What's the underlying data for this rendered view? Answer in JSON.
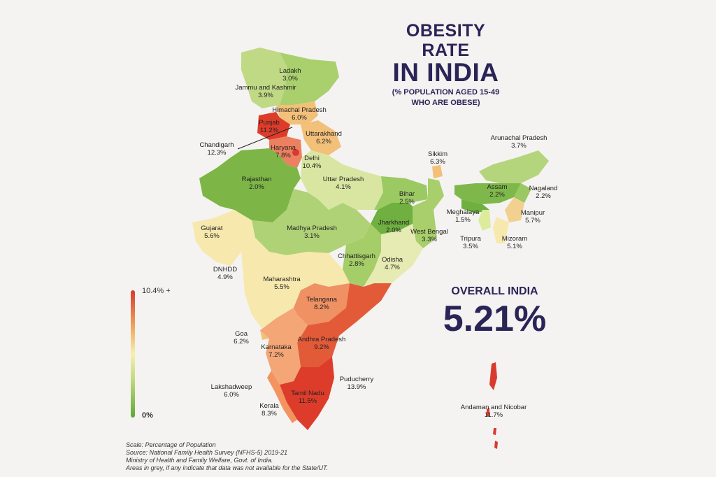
{
  "title": {
    "line1": "OBESITY RATE",
    "line2": "IN INDIA",
    "sub1": "(% POPULATION AGED 15-49",
    "sub2": "WHO ARE OBESE)"
  },
  "overall": {
    "label": "OVERALL INDIA",
    "value": "5.21%"
  },
  "legend": {
    "max_label": "10.4% +",
    "min_label": "0%"
  },
  "colors": {
    "high": "#d93a2e",
    "mid_high": "#f2a35a",
    "mid": "#f7f0b0",
    "mid_low": "#bcd77a",
    "low": "#5fa833",
    "title": "#2b2457"
  },
  "regions": [
    {
      "name": "Ladakh",
      "value": "3.0%"
    },
    {
      "name": "Jammu and Kashmir",
      "value": "3.9%"
    },
    {
      "name": "Himachal Pradesh",
      "value": "6.0%"
    },
    {
      "name": "Punjab",
      "value": "11.2%"
    },
    {
      "name": "Chandigarh",
      "value": "12.3%"
    },
    {
      "name": "Uttarakhand",
      "value": "6.2%"
    },
    {
      "name": "Haryana",
      "value": "7.8%"
    },
    {
      "name": "Delhi",
      "value": "10.4%"
    },
    {
      "name": "Rajasthan",
      "value": "2.0%"
    },
    {
      "name": "Uttar Pradesh",
      "value": "4.1%"
    },
    {
      "name": "Sikkim",
      "value": "6.3%"
    },
    {
      "name": "Arunachal Pradesh",
      "value": "3.7%"
    },
    {
      "name": "Bihar",
      "value": "2.5%"
    },
    {
      "name": "Assam",
      "value": "2.2%"
    },
    {
      "name": "Nagaland",
      "value": "2.2%"
    },
    {
      "name": "Meghalaya",
      "value": "1.5%"
    },
    {
      "name": "Manipur",
      "value": "5.7%"
    },
    {
      "name": "Gujarat",
      "value": "5.6%"
    },
    {
      "name": "Madhya Pradesh",
      "value": "3.1%"
    },
    {
      "name": "Jharkhand",
      "value": "2.0%"
    },
    {
      "name": "West Bengal",
      "value": "3.3%"
    },
    {
      "name": "Tripura",
      "value": "3.5%"
    },
    {
      "name": "Mizoram",
      "value": "5.1%"
    },
    {
      "name": "DNHDD",
      "value": "4.9%"
    },
    {
      "name": "Chhattisgarh",
      "value": "2.8%"
    },
    {
      "name": "Odisha",
      "value": "4.7%"
    },
    {
      "name": "Maharashtra",
      "value": "5.5%"
    },
    {
      "name": "Telangana",
      "value": "8.2%"
    },
    {
      "name": "Goa",
      "value": "6.2%"
    },
    {
      "name": "Andhra Pradesh",
      "value": "9.2%"
    },
    {
      "name": "Karnataka",
      "value": "7.2%"
    },
    {
      "name": "Puducherry",
      "value": "13.9%"
    },
    {
      "name": "Lakshadweep",
      "value": "6.0%"
    },
    {
      "name": "Tamil Nadu",
      "value": "11.5%"
    },
    {
      "name": "Kerala",
      "value": "8.3%"
    },
    {
      "name": "Andaman and Nicobar",
      "value": "11.7%"
    }
  ],
  "footer": {
    "line1": "Scale: Percentage of Population",
    "line2": "Source: National Family Health Survey (NFHS-5) 2019-21",
    "line3": "Ministry of Health and Family Welfare, Govt. of India.",
    "line4": "Areas in grey, if any indicate that data was not available for the State/UT."
  }
}
